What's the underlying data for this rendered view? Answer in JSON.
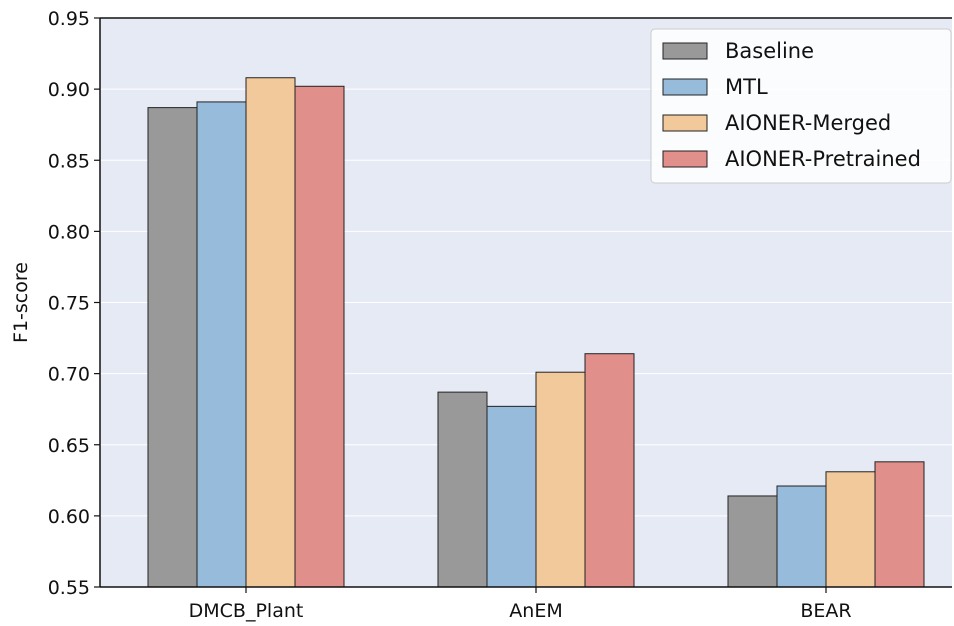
{
  "chart_data": {
    "type": "bar",
    "title": "",
    "xlabel": "",
    "ylabel": "F1-score",
    "ylim": [
      0.55,
      0.95
    ],
    "yticks": [
      "0.55",
      "0.60",
      "0.65",
      "0.70",
      "0.75",
      "0.80",
      "0.85",
      "0.90",
      "0.95"
    ],
    "categories": [
      "DMCB_Plant",
      "AnEM",
      "BEAR"
    ],
    "series": [
      {
        "name": "Baseline",
        "color": "#999999",
        "values": [
          0.887,
          0.687,
          0.614
        ]
      },
      {
        "name": "MTL",
        "color": "#97bcdb",
        "values": [
          0.891,
          0.677,
          0.621
        ]
      },
      {
        "name": "AIONER-Merged",
        "color": "#f2c99a",
        "values": [
          0.908,
          0.701,
          0.631
        ]
      },
      {
        "name": "AIONER-Pretrained",
        "color": "#e08f8a",
        "values": [
          0.902,
          0.714,
          0.638
        ]
      }
    ],
    "grid": true,
    "legend_position": "top-right",
    "background": "#e5eaf5"
  }
}
